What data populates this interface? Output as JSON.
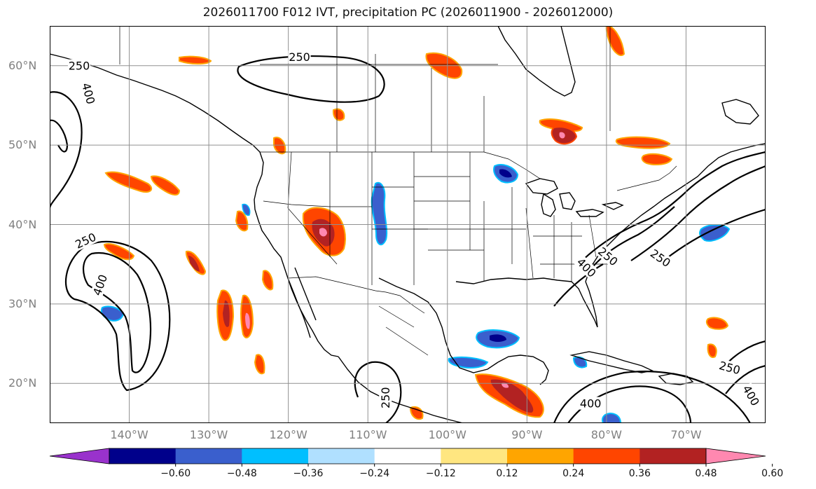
{
  "title": "2026011700 F012 IVT, precipitation PC (2026011900 - 2026012000)",
  "map": {
    "lon_range": [
      -150,
      -60
    ],
    "lat_range": [
      15,
      65
    ],
    "lat_labels": [
      {
        "lat": 60,
        "text": "60°N"
      },
      {
        "lat": 50,
        "text": "50°N"
      },
      {
        "lat": 40,
        "text": "40°N"
      },
      {
        "lat": 30,
        "text": "30°N"
      },
      {
        "lat": 20,
        "text": "20°N"
      }
    ],
    "lon_labels": [
      {
        "lon": -140,
        "text": "140°W"
      },
      {
        "lon": -130,
        "text": "130°W"
      },
      {
        "lon": -120,
        "text": "120°W"
      },
      {
        "lon": -110,
        "text": "110°W"
      },
      {
        "lon": -100,
        "text": "100°W"
      },
      {
        "lon": -90,
        "text": "90°W"
      },
      {
        "lon": -80,
        "text": "80°W"
      },
      {
        "lon": -70,
        "text": "70°W"
      }
    ],
    "contour_labels": [
      {
        "text": "250",
        "lon": -145.5,
        "lat": 38.0,
        "rot": 25
      },
      {
        "text": "400",
        "lon": -143.7,
        "lat": 32.4,
        "rot": 70
      },
      {
        "text": "250",
        "lon": -146.3,
        "lat": 60.0,
        "rot": 0
      },
      {
        "text": "400",
        "lon": -145.1,
        "lat": 56.5,
        "rot": -75
      },
      {
        "text": "250",
        "lon": -118.6,
        "lat": 61.1,
        "rot": 0
      },
      {
        "text": "400",
        "lon": -82.5,
        "lat": 34.6,
        "rot": -45
      },
      {
        "text": "250",
        "lon": -79.8,
        "lat": 36.0,
        "rot": -40
      },
      {
        "text": "250",
        "lon": -73.2,
        "lat": 35.8,
        "rot": -35
      },
      {
        "text": "250",
        "lon": -107.8,
        "lat": 18.2,
        "rot": 90
      },
      {
        "text": "400",
        "lon": -82.0,
        "lat": 17.5,
        "rot": 0
      },
      {
        "text": "250",
        "lon": -64.5,
        "lat": 22.0,
        "rot": -15
      },
      {
        "text": "400",
        "lon": -61.8,
        "lat": 18.5,
        "rot": -60
      }
    ]
  },
  "colorbar": {
    "levels": [
      -0.6,
      -0.48,
      -0.36,
      -0.24,
      -0.12,
      0.12,
      0.24,
      0.36,
      0.48,
      0.6
    ],
    "tick_labels": [
      "−0.60",
      "−0.48",
      "−0.36",
      "−0.24",
      "−0.12",
      "0.12",
      "0.24",
      "0.36",
      "0.48",
      "0.60"
    ],
    "colors": [
      "#9932cc",
      "#00008b",
      "#3a5fcd",
      "#00bfff",
      "#b0e0ff",
      "#ffffff",
      "#ffe680",
      "#ffa500",
      "#ff4500",
      "#b22222",
      "#ff88b0"
    ]
  }
}
